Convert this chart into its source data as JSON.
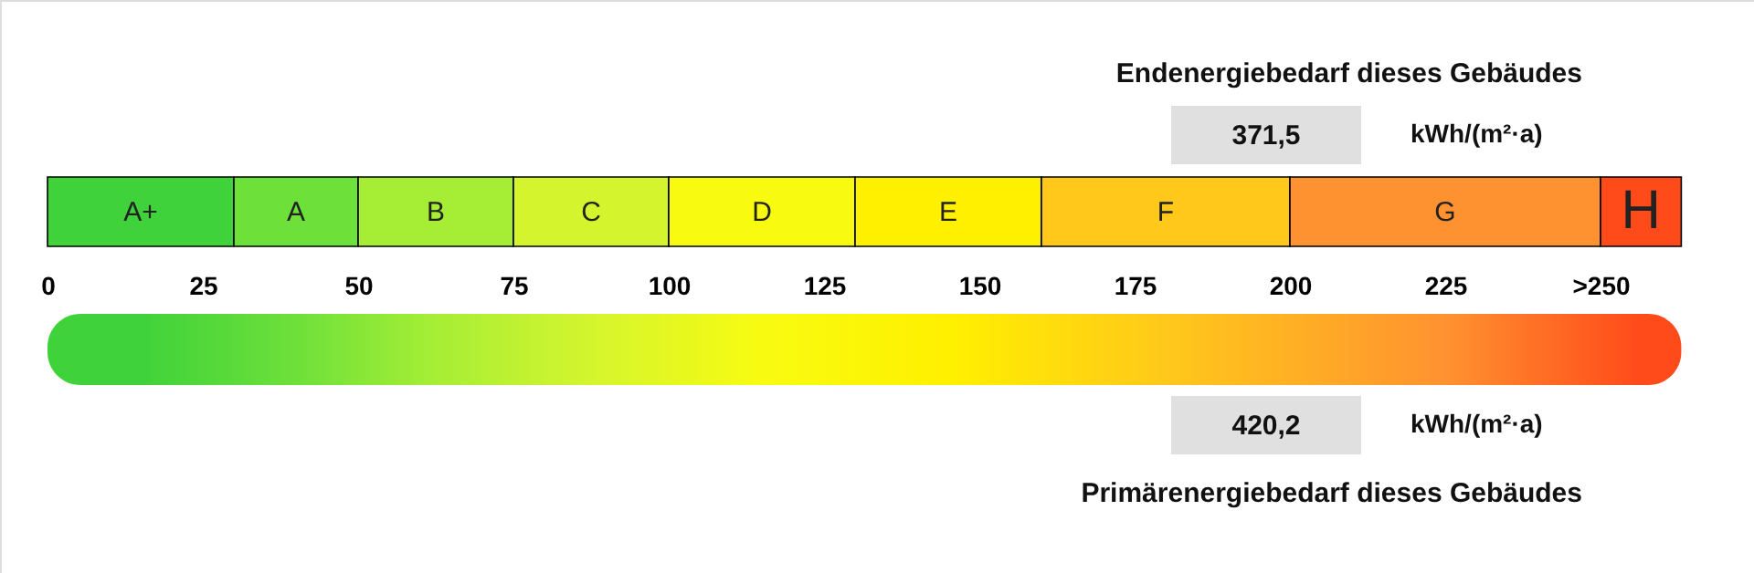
{
  "chart_data": {
    "type": "bar",
    "orientation": "horizontal",
    "stacked": true,
    "categories": [
      null
    ],
    "xlim": [
      0,
      263
    ],
    "xticks": [
      0,
      25,
      50,
      75,
      100,
      125,
      150,
      175,
      200,
      225,
      {
        "value": 250,
        "label": ">250"
      }
    ],
    "series": [
      {
        "name": "A+",
        "color": "#3fd23a",
        "values": [
          30
        ]
      },
      {
        "name": "A",
        "color": "#6ee03a",
        "values": [
          20
        ]
      },
      {
        "name": "B",
        "color": "#a6ee35",
        "values": [
          25
        ]
      },
      {
        "name": "C",
        "color": "#d4f52e",
        "values": [
          25
        ]
      },
      {
        "name": "D",
        "color": "#f8fb10",
        "values": [
          30
        ]
      },
      {
        "name": "E",
        "color": "#fff000",
        "values": [
          30
        ]
      },
      {
        "name": "F",
        "color": "#ffc81a",
        "values": [
          40
        ]
      },
      {
        "name": "G",
        "color": "#ff9230",
        "values": [
          50
        ]
      },
      {
        "name": "H",
        "color": "#ff4a1a",
        "values": [
          13
        ]
      }
    ],
    "annotations": [
      "Endenergiebedarf dieses Gebäudes",
      "371,5",
      "kWh/(m²·a)",
      "420,2",
      "kWh/(m²·a)",
      "Primärenergiebedarf dieses Gebäudes"
    ]
  }
}
